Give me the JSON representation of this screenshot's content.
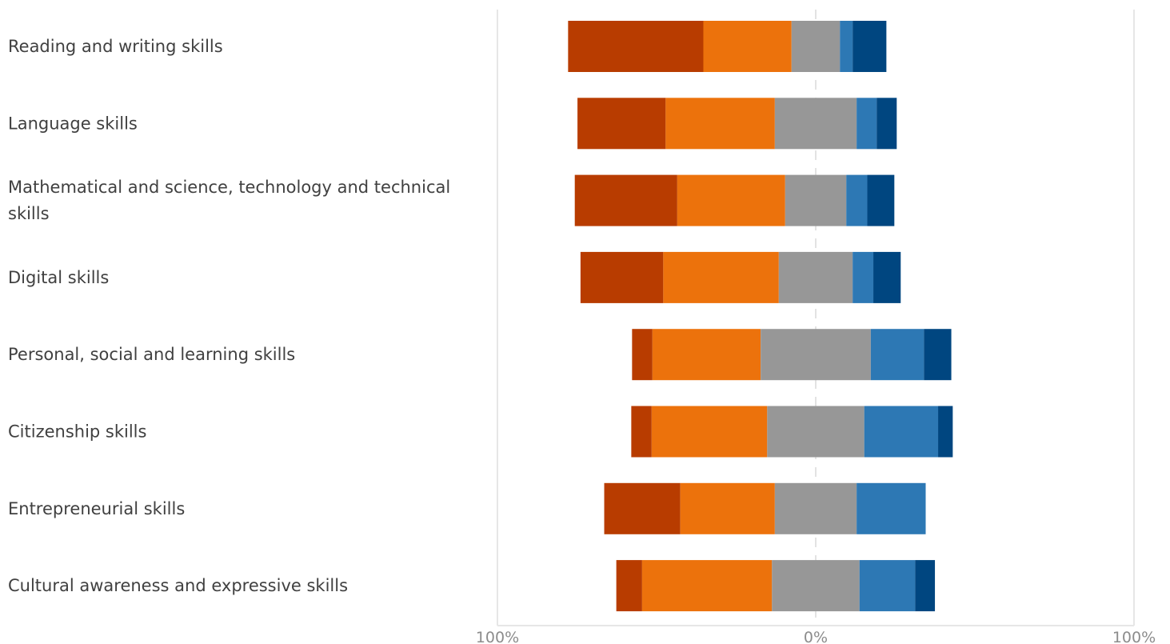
{
  "chart_data": {
    "type": "bar",
    "orientation": "horizontal",
    "stacked": "diverging",
    "categories": [
      "Reading and writing skills",
      "Language skills",
      "Mathematical and science, technology and technical skills",
      "Digital skills",
      "Personal, social and learning skills",
      "Citizenship skills",
      "Entrepreneurial skills",
      "Cultural awareness and expressive skills"
    ],
    "category_lines": [
      [
        "Reading and writing skills"
      ],
      [
        "Language skills"
      ],
      [
        "Mathematical and science, technology and technical",
        "skills"
      ],
      [
        "Digital skills"
      ],
      [
        "Personal, social and learning skills"
      ],
      [
        "Citizenship skills"
      ],
      [
        "Entrepreneurial skills"
      ],
      [
        "Cultural awareness and expressive skills"
      ]
    ],
    "series": [
      {
        "color": "#b83c00",
        "values": [
          42.5,
          27.7,
          32.2,
          26.0,
          6.4,
          6.4,
          23.9,
          8.1
        ]
      },
      {
        "color": "#ec720c",
        "values": [
          27.7,
          34.3,
          33.9,
          36.3,
          34.0,
          36.3,
          29.7,
          40.8
        ]
      },
      {
        "color": "#979797",
        "values": [
          15.2,
          25.7,
          19.2,
          23.2,
          34.6,
          30.5,
          25.7,
          27.5
        ]
      },
      {
        "color": "#2d78b4",
        "values": [
          4.0,
          6.3,
          6.6,
          6.5,
          16.7,
          23.2,
          21.7,
          17.5
        ]
      },
      {
        "color": "#004680",
        "values": [
          10.6,
          6.3,
          8.5,
          8.6,
          8.6,
          4.6,
          0.0,
          6.2
        ]
      }
    ],
    "center_series_index": 2,
    "xlim": [
      -100,
      100
    ],
    "ticks": [
      {
        "value": -100,
        "label": "100%"
      },
      {
        "value": 0,
        "label": "0%"
      },
      {
        "value": 100,
        "label": "100%"
      }
    ],
    "grid": true,
    "legend": "none"
  }
}
